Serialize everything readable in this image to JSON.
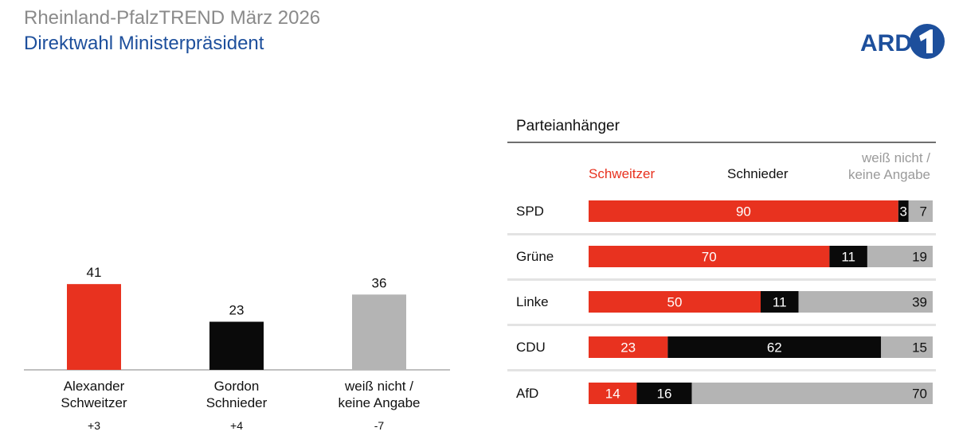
{
  "header": {
    "title": "Rheinland-PfalzTREND März 2026",
    "subtitle": "Direktwahl Ministerpräsident",
    "logo_text": "ARD"
  },
  "colors": {
    "schweitzer": "#e8321f",
    "schnieder": "#0a0a0a",
    "undecided": "#b4b4b4",
    "title_gray": "#8a8a8a",
    "title_blue": "#1d4f9c"
  },
  "chart_data": [
    {
      "type": "bar",
      "title": "Direktwahl Ministerpräsident",
      "categories": [
        [
          "Alexander",
          "Schweitzer"
        ],
        [
          "Gordon",
          "Schnieder"
        ],
        [
          "weiß nicht /",
          "keine Angabe"
        ]
      ],
      "values": [
        41,
        23,
        36
      ],
      "changes": [
        "+3",
        "+4",
        "-7"
      ],
      "ylim": [
        0,
        45
      ]
    },
    {
      "type": "bar",
      "orientation": "horizontal-stacked",
      "title": "Parteianhänger",
      "categories": [
        "SPD",
        "Grüne",
        "Linke",
        "CDU",
        "AfD"
      ],
      "legend": {
        "schweitzer": "Schweitzer",
        "schnieder": "Schnieder",
        "undecided_line1": "weiß nicht /",
        "undecided_line2": "keine Angabe"
      },
      "series": [
        {
          "name": "Schweitzer",
          "values": [
            90,
            70,
            50,
            23,
            14
          ]
        },
        {
          "name": "Schnieder",
          "values": [
            3,
            11,
            11,
            62,
            16
          ]
        },
        {
          "name": "weiß nicht / keine Angabe",
          "values": [
            7,
            19,
            39,
            15,
            70
          ]
        }
      ]
    }
  ]
}
